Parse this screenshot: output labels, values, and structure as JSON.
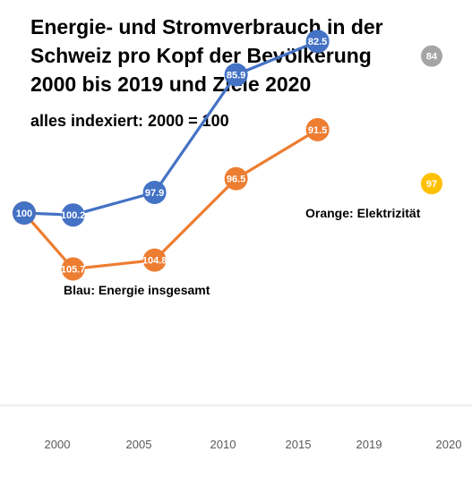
{
  "chart_data": {
    "type": "line",
    "title_lines": [
      "Energie- und Stromverbrauch in der",
      "Schweiz pro Kopf der Bevölkerung",
      "2000 bis 2019 und Ziele 2020"
    ],
    "subtitle": "alles indexiert: 2000 = 100",
    "categories": [
      "2000",
      "2005",
      "2010",
      "2015",
      "2019",
      "2020"
    ],
    "series": [
      {
        "key": "elektrizitaet",
        "color": "#ED7D31",
        "points": [
          {
            "x": 2000,
            "y": 100,
            "label": "100"
          },
          {
            "x": 2003,
            "y": 105.7,
            "label": "105.7"
          },
          {
            "x": 2008,
            "y": 104.8,
            "label": "104.8"
          },
          {
            "x": 2013,
            "y": 96.5,
            "label": "96.5"
          },
          {
            "x": 2018,
            "y": 91.5,
            "label": "91.5"
          }
        ]
      },
      {
        "key": "energie",
        "color": "#4472C4",
        "points": [
          {
            "x": 2000,
            "y": 100,
            "label": "100"
          },
          {
            "x": 2003,
            "y": 100.2,
            "label": "100.2"
          },
          {
            "x": 2008,
            "y": 97.9,
            "label": "97.9"
          },
          {
            "x": 2013,
            "y": 85.9,
            "label": "85.9"
          },
          {
            "x": 2018,
            "y": 82.5,
            "label": "82.5"
          }
        ]
      }
    ],
    "targets": [
      {
        "key": "ziel-elektrizitaet",
        "x": 2020,
        "y": 97,
        "label": "97",
        "color": "#FFC000"
      },
      {
        "key": "ziel-energie",
        "x": 2020,
        "y": 84,
        "label": "84",
        "color": "#A5A5A5"
      }
    ],
    "annotations": {
      "orange": "Orange: Elektrizität",
      "blue": "Blau: Energie insgesamt"
    },
    "grid": false
  }
}
